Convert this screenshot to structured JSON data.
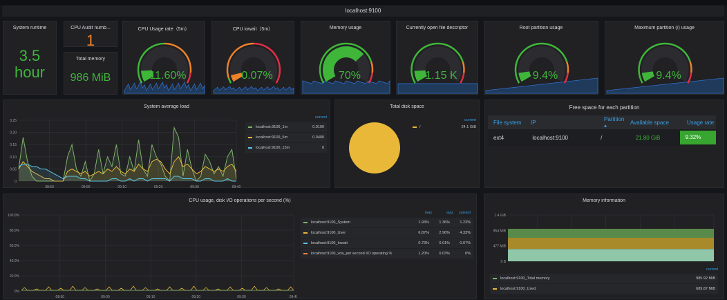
{
  "row_title": "localhost:9100",
  "colors": {
    "green": "#3fb63a",
    "orange": "#ed8128",
    "red": "#e02f44",
    "yellow": "#eab839",
    "blue": "#1f60c4",
    "cyan": "#5bc6e8",
    "accent": "#33a2e5"
  },
  "stats": {
    "runtime": {
      "title": "System runtime",
      "value": "3.5",
      "unit": "hour"
    },
    "cpu_audit": {
      "title": "CPU Audit numb...",
      "value": "1"
    },
    "total_memory": {
      "title": "Total memory",
      "value": "986 MiB"
    }
  },
  "gauges": [
    {
      "title": "CPU Usage rate（5m）",
      "display": "11.60%",
      "value": 11.6,
      "max": 100,
      "thresholds": [
        [
          50,
          "#3fb63a"
        ],
        [
          90,
          "#ed8128"
        ],
        [
          100,
          "#e02f44"
        ]
      ]
    },
    {
      "title": "CPU iowait（5m）",
      "display": "0.07%",
      "value": 0.07,
      "max": 1,
      "thresholds": [
        [
          0.05,
          "#3fb63a"
        ],
        [
          0.5,
          "#ed8128"
        ],
        [
          1,
          "#e02f44"
        ]
      ]
    },
    {
      "title": "Memory usage",
      "display": "70%",
      "value": 70,
      "max": 100,
      "thresholds": [
        [
          80,
          "#3fb63a"
        ],
        [
          90,
          "#ed8128"
        ],
        [
          100,
          "#e02f44"
        ]
      ]
    },
    {
      "title": "Currently open file descriptor",
      "display": "1.15 K",
      "value": 1150,
      "max": 10000,
      "thresholds": [
        [
          8000,
          "#3fb63a"
        ],
        [
          9000,
          "#ed8128"
        ],
        [
          10000,
          "#e02f44"
        ]
      ]
    },
    {
      "title": "Root partition usage",
      "display": "9.4%",
      "value": 9.4,
      "max": 100,
      "thresholds": [
        [
          80,
          "#3fb63a"
        ],
        [
          90,
          "#ed8128"
        ],
        [
          100,
          "#e02f44"
        ]
      ]
    },
    {
      "title": "Maximum partition (/) usage",
      "display": "9.4%",
      "value": 9.4,
      "max": 100,
      "thresholds": [
        [
          80,
          "#3fb63a"
        ],
        [
          90,
          "#ed8128"
        ],
        [
          100,
          "#e02f44"
        ]
      ]
    }
  ],
  "chart_data": [
    {
      "type": "line",
      "title": "System average load",
      "x_ticks": [
        "08:50",
        "09:00",
        "09:10",
        "09:20",
        "09:30",
        "09:40"
      ],
      "y_ticks": [
        "0",
        "0.05",
        "0.10",
        "0.15",
        "0.20",
        "0.25"
      ],
      "ylim": [
        0,
        0.25
      ],
      "xlim": [
        "08:43",
        "09:40"
      ],
      "grid": true,
      "legend_placement": "right",
      "legend_header": "current",
      "series": [
        {
          "name": "localhost:9100_1m",
          "color": "#7eb26d",
          "current": "0.0100",
          "values": [
            0.05,
            0.18,
            0.08,
            0.02,
            0,
            0,
            0,
            0,
            0,
            0,
            0,
            0.1,
            0.15,
            0.05,
            0.02,
            0.08,
            0,
            0.03,
            0.13,
            0.03,
            0.1,
            0.06,
            0.15,
            0.03,
            0.02,
            0.1,
            0.04,
            0.17,
            0.05,
            0.02,
            0.15,
            0.1,
            0.07,
            0.02,
            0,
            0.22,
            0.18,
            0.02,
            0.13,
            0.05,
            0,
            0.02,
            0.11,
            0.08,
            0.03,
            0.06,
            0.02,
            0.1,
            0.13,
            0.01
          ]
        },
        {
          "name": "localhost:9100_5m",
          "color": "#eab839",
          "current": "0.0400",
          "values": [
            0.05,
            0.08,
            0.06,
            0.04,
            0.03,
            0.02,
            0.01,
            0.01,
            0,
            0,
            0,
            0.04,
            0.05,
            0.04,
            0.03,
            0.04,
            0.02,
            0.03,
            0.04,
            0.03,
            0.05,
            0.04,
            0.06,
            0.04,
            0.03,
            0.05,
            0.04,
            0.07,
            0.05,
            0.04,
            0.08,
            0.09,
            0.08,
            0.05,
            0.03,
            0.08,
            0.1,
            0.06,
            0.07,
            0.05,
            0.03,
            0.04,
            0.06,
            0.05,
            0.04,
            0.05,
            0.04,
            0.06,
            0.07,
            0.04
          ]
        },
        {
          "name": "localhost:9100_15m",
          "color": "#5bc6e8",
          "current": "0",
          "values": [
            0.06,
            0.07,
            0.07,
            0.06,
            0.06,
            0.05,
            0.05,
            0.04,
            0.03,
            0.02,
            0.01,
            0.02,
            0.02,
            0.02,
            0.01,
            0.01,
            0,
            0,
            0,
            0,
            0,
            0.01,
            0.01,
            0,
            0,
            0.01,
            0,
            0.01,
            0.01,
            0,
            0.01,
            0.01,
            0.01,
            0.01,
            0,
            0.02,
            0.02,
            0.01,
            0.01,
            0.01,
            0,
            0,
            0.01,
            0.01,
            0,
            0,
            0,
            0.01,
            0,
            0
          ]
        }
      ]
    },
    {
      "type": "pie",
      "title": "Total disk space",
      "legend_header": "current",
      "slices": [
        {
          "name": "/",
          "value": "24.1 GiB",
          "color": "#eab839"
        }
      ]
    },
    {
      "type": "line",
      "title": "CPU usage, disk I/O operations per second (%)",
      "x_ticks": [
        "08:50",
        "09:00",
        "09:10",
        "09:20",
        "09:30",
        "09:40"
      ],
      "y_ticks": [
        "0%",
        "20.0%",
        "40.0%",
        "60.0%",
        "80.0%",
        "100.0%"
      ],
      "ylim": [
        0,
        100
      ],
      "grid": true,
      "legend_placement": "right",
      "legend_headers": [
        "max",
        "avg",
        "current"
      ],
      "series": [
        {
          "name": "localhost:9100_System",
          "color": "#7eb26d",
          "max": "1.93%",
          "avg": "1.36%",
          "current": "1.23%"
        },
        {
          "name": "localhost:9100_User",
          "color": "#eab839",
          "max": "6.87%",
          "avg": "2.96%",
          "current": "4.33%"
        },
        {
          "name": "localhost:9100_Iowait",
          "color": "#5bc6e8",
          "max": "0.73%",
          "avg": "0.01%",
          "current": "0.07%"
        },
        {
          "name": "localhost:9100_vda_per second I/O operating %",
          "color": "#ef843c",
          "max": "1.20%",
          "avg": "0.03%",
          "current": "0%"
        }
      ]
    },
    {
      "type": "area",
      "title": "Memory information",
      "x_ticks": [
        "08:50",
        "09:00",
        "09:10",
        "09:20",
        "09:30",
        "09:40"
      ],
      "y_ticks": [
        "0 B",
        "477 MiB",
        "954 MiB",
        "1.4 GiB"
      ],
      "legend_header": "current",
      "series": [
        {
          "name": "localhost:9100_Total memory",
          "color": "#7eb26d",
          "current": "985.92 MiB"
        },
        {
          "name": "localhost:9100_Used",
          "color": "#eab839",
          "current": "689.87 MiB"
        }
      ]
    }
  ],
  "table": {
    "title": "Free space for each partition",
    "headers": [
      "File system",
      "IP",
      "Partition ▴",
      "Available space",
      "Usage rate"
    ],
    "rows": [
      [
        "ext4",
        "localhost:9100",
        "/",
        "21.80 GiB",
        "9.32%"
      ]
    ]
  }
}
